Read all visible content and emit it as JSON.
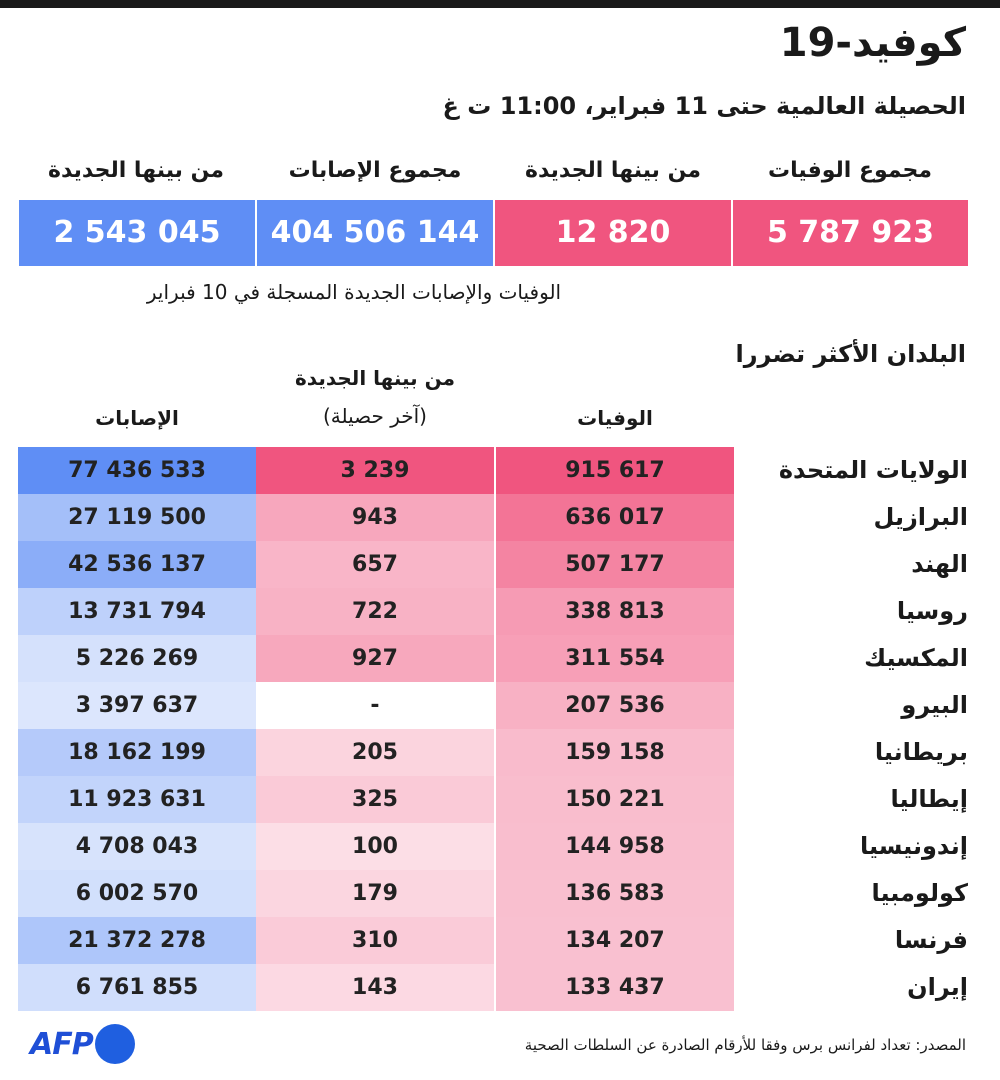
{
  "title": "كوفيد-19",
  "subtitle": "الحصيلة العالمية حتى 11 فبراير، 11:00 ت غ",
  "summary": {
    "items": [
      {
        "label": "مجموع الوفيات",
        "value": "5 787 923",
        "color": "#f0557f"
      },
      {
        "label": "من بينها الجديدة",
        "value": "12 820",
        "color": "#f0557f"
      },
      {
        "label": "مجموع الإصابات",
        "value": "404 506 144",
        "color": "#5f8ef5"
      },
      {
        "label": "من بينها الجديدة",
        "value": "2 543 045",
        "color": "#5f8ef5"
      }
    ],
    "note": "الوفيات والإصابات الجديدة المسجلة في 10 فبراير"
  },
  "chart_data": {
    "type": "table",
    "title": "البلدان الأكثر تضررا",
    "columns": {
      "deaths": "الوفيات",
      "new_line1": "من بينها الجديدة",
      "new_line2": "(آخر حصيلة)",
      "cases": "الإصابات"
    },
    "rows": [
      {
        "country": "الولايات المتحدة",
        "deaths": "915 617",
        "new_deaths": "3 239",
        "cases": "77 436 533"
      },
      {
        "country": "البرازيل",
        "deaths": "636 017",
        "new_deaths": "943",
        "cases": "27 119 500"
      },
      {
        "country": "الهند",
        "deaths": "507 177",
        "new_deaths": "657",
        "cases": "42 536 137"
      },
      {
        "country": "روسيا",
        "deaths": "338 813",
        "new_deaths": "722",
        "cases": "13 731 794"
      },
      {
        "country": "المكسيك",
        "deaths": "311 554",
        "new_deaths": "927",
        "cases": "5 226 269"
      },
      {
        "country": "البيرو",
        "deaths": "207 536",
        "new_deaths": "-",
        "cases": "3 397 637"
      },
      {
        "country": "بريطانيا",
        "deaths": "159 158",
        "new_deaths": "205",
        "cases": "18 162 199"
      },
      {
        "country": "إيطاليا",
        "deaths": "150 221",
        "new_deaths": "325",
        "cases": "11 923 631"
      },
      {
        "country": "إندونيسيا",
        "deaths": "144 958",
        "new_deaths": "100",
        "cases": "4 708 043"
      },
      {
        "country": "كولومبيا",
        "deaths": "136 583",
        "new_deaths": "179",
        "cases": "6 002 570"
      },
      {
        "country": "فرنسا",
        "deaths": "134 207",
        "new_deaths": "310",
        "cases": "21 372 278"
      },
      {
        "country": "إيران",
        "deaths": "133 437",
        "new_deaths": "143",
        "cases": "6 761 855"
      }
    ],
    "colors": {
      "deaths_scale": "#f0557f",
      "cases_scale": "#5f8ef5"
    }
  },
  "source": "المصدر: تعداد لفرانس برس وفقا للأرقام الصادرة عن السلطات الصحية",
  "logo": "AFP"
}
